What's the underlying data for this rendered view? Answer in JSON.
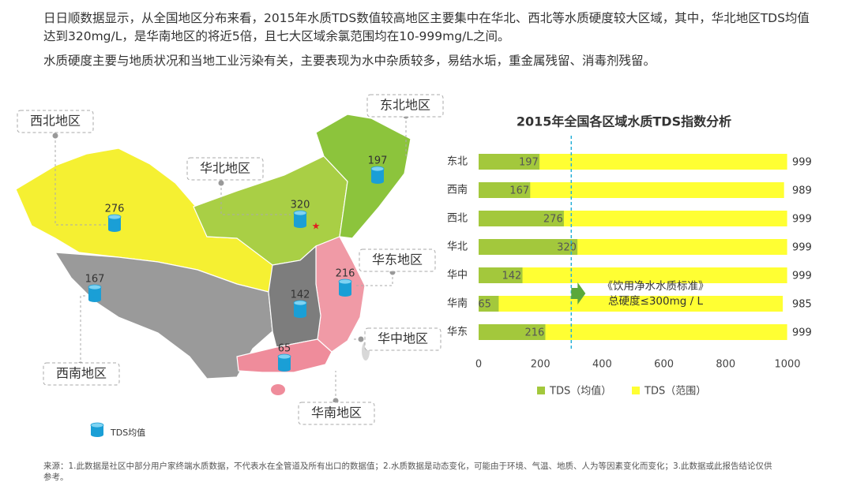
{
  "intro": [
    "日日顺数据显示，从全国地区分布来看，2015年水质TDS数值较高地区主要集中在华北、西北等水质硬度较大区域，其中，华北地区TDS均值达到320mg/L，是华南地区的将近5倍，且七大区域余氯范围均在10-999mg/L之间。",
    "水质硬度主要与地质状况和当地工业污染有关，主要表现为水中杂质较多，易结水垢，重金属残留、消毒剂残留。"
  ],
  "map": {
    "regions": [
      {
        "label": "西北地区",
        "value": 276,
        "color": "#f5f032"
      },
      {
        "label": "西南地区",
        "value": 167,
        "color": "#9a9a9a"
      },
      {
        "label": "华北地区",
        "value": 320,
        "color": "#a9cf45"
      },
      {
        "label": "东北地区",
        "value": 197,
        "color": "#8cc43c"
      },
      {
        "label": "华东地区",
        "value": 216,
        "color": "#f09aa6"
      },
      {
        "label": "华中地区",
        "value": 142,
        "color": "#7d7d7d"
      },
      {
        "label": "华南地区",
        "value": 65,
        "color": "#ef8c9b"
      }
    ],
    "legend": "TDS均值"
  },
  "chart_data": {
    "type": "bar",
    "orientation": "horizontal",
    "title": "2015年全国各区域水质TDS指数分析",
    "categories": [
      "东北",
      "西南",
      "西北",
      "华北",
      "华中",
      "华南",
      "华东"
    ],
    "series": [
      {
        "name": "TDS（范围）",
        "color": "#ffff33",
        "values": [
          999,
          989,
          999,
          999,
          999,
          985,
          999
        ]
      },
      {
        "name": "TDS（均值）",
        "color": "#a3c83c",
        "values": [
          197,
          167,
          276,
          320,
          142,
          65,
          216
        ]
      }
    ],
    "xlim": [
      0,
      1000
    ],
    "xticks": [
      0,
      200,
      400,
      600,
      800,
      1000
    ],
    "reference_line": 300,
    "reference_label": [
      "《饮用净水水质标准》",
      "总硬度≤300mg / L"
    ]
  },
  "source": "来源：1.此数据是社区中部分用户家终端水质数据，不代表水在全管道及所有出口的数据值；2.水质数据是动态变化，可能由于环境、气温、地质、人为等因素变化而变化；3.此数据或此报告结论仅供参考。"
}
